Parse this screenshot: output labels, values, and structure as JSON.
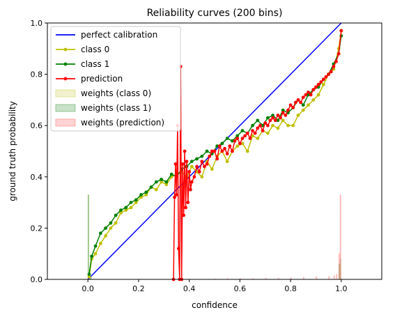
{
  "chart_data": {
    "type": "line",
    "title": "Reliability curves (200 bins)",
    "xlabel": "confidence",
    "ylabel": "ground truth probability",
    "xlim": [
      -0.16,
      1.16
    ],
    "ylim": [
      0.0,
      1.0
    ],
    "xticks": [
      0.0,
      0.2,
      0.4,
      0.6,
      0.8,
      1.0
    ],
    "xtick_labels": [
      "0.0",
      "0.2",
      "0.4",
      "0.6",
      "0.8",
      "1.0"
    ],
    "yticks": [
      0.0,
      0.2,
      0.4,
      0.6,
      0.8,
      1.0
    ],
    "ytick_labels": [
      "0.0",
      "0.2",
      "0.4",
      "0.6",
      "0.8",
      "1.0"
    ],
    "grid": false,
    "legend_position": "upper-left",
    "series": [
      {
        "name": "perfect calibration",
        "kind": "line",
        "color": "#0000ff",
        "x": [
          0.0,
          1.0
        ],
        "y": [
          0.0,
          1.0
        ]
      },
      {
        "name": "class 0",
        "kind": "line-marker",
        "color": "#bfbf00",
        "x": [
          0.005,
          0.015,
          0.03,
          0.05,
          0.07,
          0.09,
          0.11,
          0.13,
          0.15,
          0.17,
          0.19,
          0.21,
          0.23,
          0.25,
          0.27,
          0.29,
          0.31,
          0.33,
          0.35,
          0.37,
          0.39,
          0.41,
          0.43,
          0.45,
          0.47,
          0.49,
          0.51,
          0.53,
          0.55,
          0.57,
          0.59,
          0.61,
          0.63,
          0.65,
          0.67,
          0.69,
          0.71,
          0.73,
          0.75,
          0.77,
          0.79,
          0.81,
          0.83,
          0.85,
          0.87,
          0.89,
          0.91,
          0.93,
          0.95,
          0.97,
          0.99,
          1.0
        ],
        "y": [
          0.01,
          0.08,
          0.1,
          0.14,
          0.17,
          0.2,
          0.22,
          0.26,
          0.27,
          0.28,
          0.3,
          0.32,
          0.33,
          0.36,
          0.35,
          0.38,
          0.37,
          0.4,
          0.41,
          0.42,
          0.4,
          0.44,
          0.42,
          0.4,
          0.46,
          0.43,
          0.48,
          0.5,
          0.46,
          0.5,
          0.52,
          0.53,
          0.5,
          0.56,
          0.55,
          0.58,
          0.57,
          0.6,
          0.59,
          0.62,
          0.6,
          0.6,
          0.64,
          0.66,
          0.68,
          0.7,
          0.72,
          0.76,
          0.8,
          0.82,
          0.9,
          0.97
        ]
      },
      {
        "name": "class 1",
        "kind": "line-marker",
        "color": "#008000",
        "x": [
          0.005,
          0.015,
          0.03,
          0.05,
          0.07,
          0.09,
          0.11,
          0.13,
          0.15,
          0.17,
          0.19,
          0.21,
          0.23,
          0.25,
          0.27,
          0.29,
          0.31,
          0.33,
          0.35,
          0.37,
          0.39,
          0.41,
          0.43,
          0.45,
          0.47,
          0.49,
          0.51,
          0.53,
          0.55,
          0.57,
          0.59,
          0.61,
          0.63,
          0.65,
          0.67,
          0.69,
          0.71,
          0.73,
          0.75,
          0.77,
          0.79,
          0.81,
          0.83,
          0.85,
          0.87,
          0.89,
          0.91,
          0.93,
          0.95,
          0.97,
          0.99,
          1.0
        ],
        "y": [
          0.02,
          0.09,
          0.13,
          0.18,
          0.2,
          0.22,
          0.25,
          0.27,
          0.28,
          0.3,
          0.31,
          0.33,
          0.34,
          0.36,
          0.38,
          0.39,
          0.38,
          0.41,
          0.4,
          0.43,
          0.44,
          0.46,
          0.47,
          0.48,
          0.5,
          0.49,
          0.52,
          0.53,
          0.55,
          0.54,
          0.56,
          0.58,
          0.57,
          0.6,
          0.62,
          0.6,
          0.63,
          0.64,
          0.62,
          0.66,
          0.65,
          0.67,
          0.7,
          0.68,
          0.72,
          0.74,
          0.75,
          0.78,
          0.8,
          0.84,
          0.88,
          0.95
        ]
      },
      {
        "name": "prediction",
        "kind": "line-marker",
        "color": "#ff0000",
        "x": [
          0.338,
          0.342,
          0.346,
          0.35,
          0.354,
          0.358,
          0.362,
          0.366,
          0.37,
          0.374,
          0.378,
          0.382,
          0.386,
          0.39,
          0.395,
          0.4,
          0.405,
          0.41,
          0.42,
          0.43,
          0.44,
          0.45,
          0.46,
          0.47,
          0.48,
          0.49,
          0.5,
          0.51,
          0.52,
          0.53,
          0.54,
          0.55,
          0.56,
          0.57,
          0.58,
          0.59,
          0.6,
          0.61,
          0.62,
          0.63,
          0.64,
          0.65,
          0.66,
          0.67,
          0.68,
          0.69,
          0.7,
          0.71,
          0.72,
          0.73,
          0.74,
          0.75,
          0.76,
          0.77,
          0.78,
          0.79,
          0.8,
          0.81,
          0.82,
          0.83,
          0.84,
          0.85,
          0.86,
          0.87,
          0.88,
          0.89,
          0.9,
          0.91,
          0.92,
          0.93,
          0.94,
          0.95,
          0.96,
          0.97,
          0.98,
          0.99,
          1.0
        ],
        "y": [
          0.0,
          0.32,
          0.45,
          0.33,
          0.6,
          0.12,
          0.0,
          0.83,
          0.0,
          0.45,
          0.25,
          0.5,
          0.28,
          0.46,
          0.3,
          0.42,
          0.35,
          0.38,
          0.4,
          0.44,
          0.42,
          0.46,
          0.44,
          0.45,
          0.48,
          0.5,
          0.5,
          0.47,
          0.52,
          0.5,
          0.51,
          0.49,
          0.52,
          0.5,
          0.54,
          0.55,
          0.53,
          0.55,
          0.56,
          0.57,
          0.55,
          0.58,
          0.57,
          0.59,
          0.6,
          0.58,
          0.61,
          0.6,
          0.62,
          0.63,
          0.62,
          0.64,
          0.63,
          0.65,
          0.64,
          0.66,
          0.68,
          0.67,
          0.69,
          0.7,
          0.69,
          0.71,
          0.72,
          0.73,
          0.72,
          0.74,
          0.75,
          0.76,
          0.77,
          0.78,
          0.79,
          0.8,
          0.81,
          0.83,
          0.85,
          0.88,
          0.97
        ]
      },
      {
        "name": "weights (class 0)",
        "kind": "histogram",
        "color": "#d8d870",
        "x": [
          0.0,
          0.005,
          0.01,
          0.99,
          0.995
        ],
        "y": [
          0.33,
          0.02,
          0.01,
          0.05,
          0.06
        ]
      },
      {
        "name": "weights (class 1)",
        "kind": "histogram",
        "color": "#60a860",
        "x": [
          0.0,
          0.005,
          0.01,
          0.99,
          0.995
        ],
        "y": [
          0.33,
          0.02,
          0.01,
          0.06,
          0.08
        ]
      },
      {
        "name": "weights (prediction)",
        "kind": "histogram",
        "color": "#ff8080",
        "x": [
          0.5,
          0.55,
          0.6,
          0.65,
          0.7,
          0.75,
          0.8,
          0.85,
          0.9,
          0.95,
          0.97,
          0.98,
          0.99,
          0.995
        ],
        "y": [
          0.002,
          0.003,
          0.003,
          0.004,
          0.005,
          0.005,
          0.006,
          0.008,
          0.01,
          0.012,
          0.015,
          0.02,
          0.1,
          0.33
        ]
      }
    ]
  }
}
